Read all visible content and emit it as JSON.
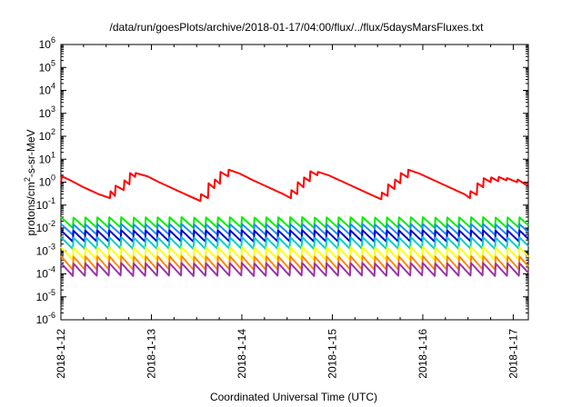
{
  "chart_data": {
    "type": "line",
    "title": "/data/run/goesPlots/archive/2018-01-17/04:00/flux/../flux/5daysMarsFluxes.txt",
    "xlabel": "Coordinated Universal Time (UTC)",
    "ylabel": {
      "prefix": "protons/cm",
      "superscript": "2",
      "suffix": "-s-sr-MeV"
    },
    "y_scale": "log",
    "ylim": [
      1e-06,
      1000000.0
    ],
    "y_ticks": [
      {
        "base": "10",
        "exp": "-6"
      },
      {
        "base": "10",
        "exp": "-5"
      },
      {
        "base": "10",
        "exp": "-4"
      },
      {
        "base": "10",
        "exp": "-3"
      },
      {
        "base": "10",
        "exp": "-2"
      },
      {
        "base": "10",
        "exp": "-1"
      },
      {
        "base": "10",
        "exp": "0"
      },
      {
        "base": "10",
        "exp": "1"
      },
      {
        "base": "10",
        "exp": "2"
      },
      {
        "base": "10",
        "exp": "3"
      },
      {
        "base": "10",
        "exp": "4"
      },
      {
        "base": "10",
        "exp": "5"
      },
      {
        "base": "10",
        "exp": "6"
      }
    ],
    "xlim": [
      "2018-01-12 00:00",
      "2018-01-17 04:00"
    ],
    "x_tick_labels": [
      "2018-1-12",
      "2018-1-13",
      "2018-1-14",
      "2018-1-15",
      "2018-1-16",
      "2018-1-17"
    ],
    "grid": false,
    "legend": "none",
    "series": [
      {
        "color": "#ff0000",
        "points": [
          [
            "2018-01-12 00:00",
            1.0
          ],
          [
            "2018-01-12 00:17",
            1.8
          ],
          [
            "2018-01-12 02:30",
            1.2
          ],
          [
            "2018-01-12 06:00",
            0.6
          ],
          [
            "2018-01-12 10:00",
            0.3
          ],
          [
            "2018-01-12 13:00",
            0.2
          ],
          [
            "2018-01-12 13:10",
            0.4
          ],
          [
            "2018-01-12 14:20",
            0.25
          ],
          [
            "2018-01-12 14:30",
            0.7
          ],
          [
            "2018-01-12 16:40",
            0.45
          ],
          [
            "2018-01-12 16:50",
            1.2
          ],
          [
            "2018-01-12 18:10",
            0.8
          ],
          [
            "2018-01-12 18:20",
            2.5
          ],
          [
            "2018-01-12 19:40",
            1.7
          ],
          [
            "2018-01-12 19:50",
            2.5
          ],
          [
            "2018-01-12 23:00",
            1.8
          ],
          [
            "2018-01-13 02:00",
            1.0
          ],
          [
            "2018-01-13 06:00",
            0.5
          ],
          [
            "2018-01-13 10:00",
            0.25
          ],
          [
            "2018-01-13 13:00",
            0.15
          ],
          [
            "2018-01-13 13:10",
            0.3
          ],
          [
            "2018-01-13 15:00",
            0.2
          ],
          [
            "2018-01-13 15:10",
            0.9
          ],
          [
            "2018-01-13 16:40",
            0.55
          ],
          [
            "2018-01-13 16:50",
            1.3
          ],
          [
            "2018-01-13 18:10",
            0.85
          ],
          [
            "2018-01-13 18:20",
            2.8
          ],
          [
            "2018-01-13 20:20",
            1.8
          ],
          [
            "2018-01-13 20:30",
            3.5
          ],
          [
            "2018-01-13 23:20",
            2.4
          ],
          [
            "2018-01-14 03:00",
            1.2
          ],
          [
            "2018-01-14 07:00",
            0.6
          ],
          [
            "2018-01-14 11:00",
            0.3
          ],
          [
            "2018-01-14 13:00",
            0.2
          ],
          [
            "2018-01-14 13:10",
            0.45
          ],
          [
            "2018-01-14 14:40",
            0.3
          ],
          [
            "2018-01-14 14:50",
            1.0
          ],
          [
            "2018-01-14 16:20",
            0.6
          ],
          [
            "2018-01-14 16:30",
            1.6
          ],
          [
            "2018-01-14 18:00",
            1.1
          ],
          [
            "2018-01-14 18:10",
            3.0
          ],
          [
            "2018-01-14 20:00",
            2.0
          ],
          [
            "2018-01-14 20:10",
            2.8
          ],
          [
            "2018-01-14 23:00",
            2.0
          ],
          [
            "2018-01-15 03:00",
            1.0
          ],
          [
            "2018-01-15 07:00",
            0.5
          ],
          [
            "2018-01-15 11:00",
            0.25
          ],
          [
            "2018-01-15 13:00",
            0.18
          ],
          [
            "2018-01-15 13:10",
            0.35
          ],
          [
            "2018-01-15 14:40",
            0.25
          ],
          [
            "2018-01-15 14:50",
            0.8
          ],
          [
            "2018-01-15 16:30",
            0.5
          ],
          [
            "2018-01-15 16:40",
            1.3
          ],
          [
            "2018-01-15 18:00",
            0.9
          ],
          [
            "2018-01-15 18:10",
            2.5
          ],
          [
            "2018-01-15 20:00",
            1.6
          ],
          [
            "2018-01-15 20:10",
            3.5
          ],
          [
            "2018-01-15 23:00",
            2.4
          ],
          [
            "2018-01-16 03:00",
            1.2
          ],
          [
            "2018-01-16 07:00",
            0.6
          ],
          [
            "2018-01-16 11:00",
            0.3
          ],
          [
            "2018-01-16 12:30",
            0.2
          ],
          [
            "2018-01-16 12:40",
            0.4
          ],
          [
            "2018-01-16 14:20",
            0.28
          ],
          [
            "2018-01-16 14:30",
            0.9
          ],
          [
            "2018-01-16 16:00",
            0.6
          ],
          [
            "2018-01-16 16:10",
            1.5
          ],
          [
            "2018-01-16 18:00",
            1.0
          ],
          [
            "2018-01-16 18:10",
            1.6
          ],
          [
            "2018-01-16 20:00",
            1.1
          ],
          [
            "2018-01-16 20:10",
            1.7
          ],
          [
            "2018-01-16 22:10",
            1.2
          ],
          [
            "2018-01-16 22:20",
            1.5
          ],
          [
            "2018-01-17 01:00",
            1.0
          ],
          [
            "2018-01-17 01:10",
            1.3
          ],
          [
            "2018-01-17 03:10",
            0.8
          ],
          [
            "2018-01-17 03:20",
            0.9
          ],
          [
            "2018-01-17 04:00",
            0.8
          ]
        ]
      },
      {
        "color": "#00ee00",
        "pattern": "sawtooth",
        "period_hours": 3.2,
        "low": 0.01,
        "high": 0.03
      },
      {
        "color": "#1a8cff",
        "pattern": "sawtooth",
        "period_hours": 3.2,
        "low": 0.005,
        "high": 0.015
      },
      {
        "color": "#0000cc",
        "pattern": "sawtooth",
        "period_hours": 3.2,
        "low": 0.0025,
        "high": 0.008
      },
      {
        "color": "#00cccc",
        "pattern": "sawtooth",
        "period_hours": 3.2,
        "low": 0.0012,
        "high": 0.004
      },
      {
        "color": "#ffff00",
        "pattern": "sawtooth",
        "period_hours": 3.2,
        "low": 0.0004,
        "high": 0.0015
      },
      {
        "color": "#ff8800",
        "pattern": "sawtooth",
        "period_hours": 3.2,
        "low": 0.00015,
        "high": 0.0006
      },
      {
        "color": "#9933aa",
        "pattern": "sawtooth",
        "period_hours": 3.2,
        "low": 8e-05,
        "high": 0.0003
      }
    ]
  }
}
